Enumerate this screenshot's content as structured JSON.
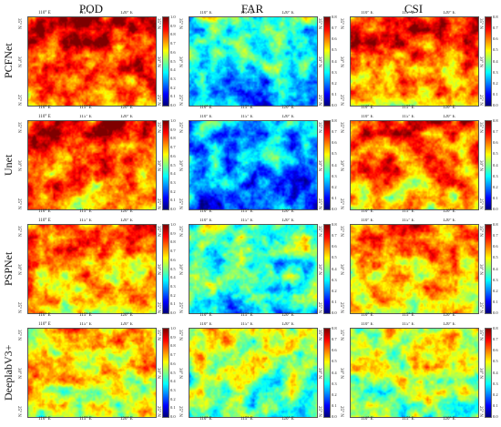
{
  "columns": [
    {
      "title": "POD",
      "max": 1.0,
      "ticks": [
        "1.0",
        "0.9",
        "0.8",
        "0.7",
        "0.6",
        "0.5",
        "0.4",
        "0.3",
        "0.2",
        "0.1",
        "0.0"
      ]
    },
    {
      "title": "FAR",
      "max": 0.8,
      "ticks": [
        "0.8",
        "0.7",
        "0.6",
        "0.5",
        "0.4",
        "0.3",
        "0.2",
        "0.1",
        "0.0"
      ]
    },
    {
      "title": "CSI",
      "max": 0.8,
      "ticks": [
        "0.8",
        "0.7",
        "0.6",
        "0.5",
        "0.4",
        "0.3",
        "0.2",
        "0.1",
        "0.0"
      ]
    }
  ],
  "rows": [
    {
      "label": "PCFNet",
      "means": [
        0.82,
        0.28,
        0.62
      ]
    },
    {
      "label": "Unet",
      "means": [
        0.8,
        0.22,
        0.6
      ]
    },
    {
      "label": "PSPNet",
      "means": [
        0.72,
        0.35,
        0.55
      ]
    },
    {
      "label": "DeeplabV3+",
      "means": [
        0.62,
        0.42,
        0.45
      ]
    }
  ],
  "axes": {
    "lon_ticks": [
      "110° E",
      "115° E",
      "120° E"
    ],
    "lat_ticks": [
      "35° N",
      "30° N",
      "25° N"
    ]
  },
  "colormap": "jet"
}
